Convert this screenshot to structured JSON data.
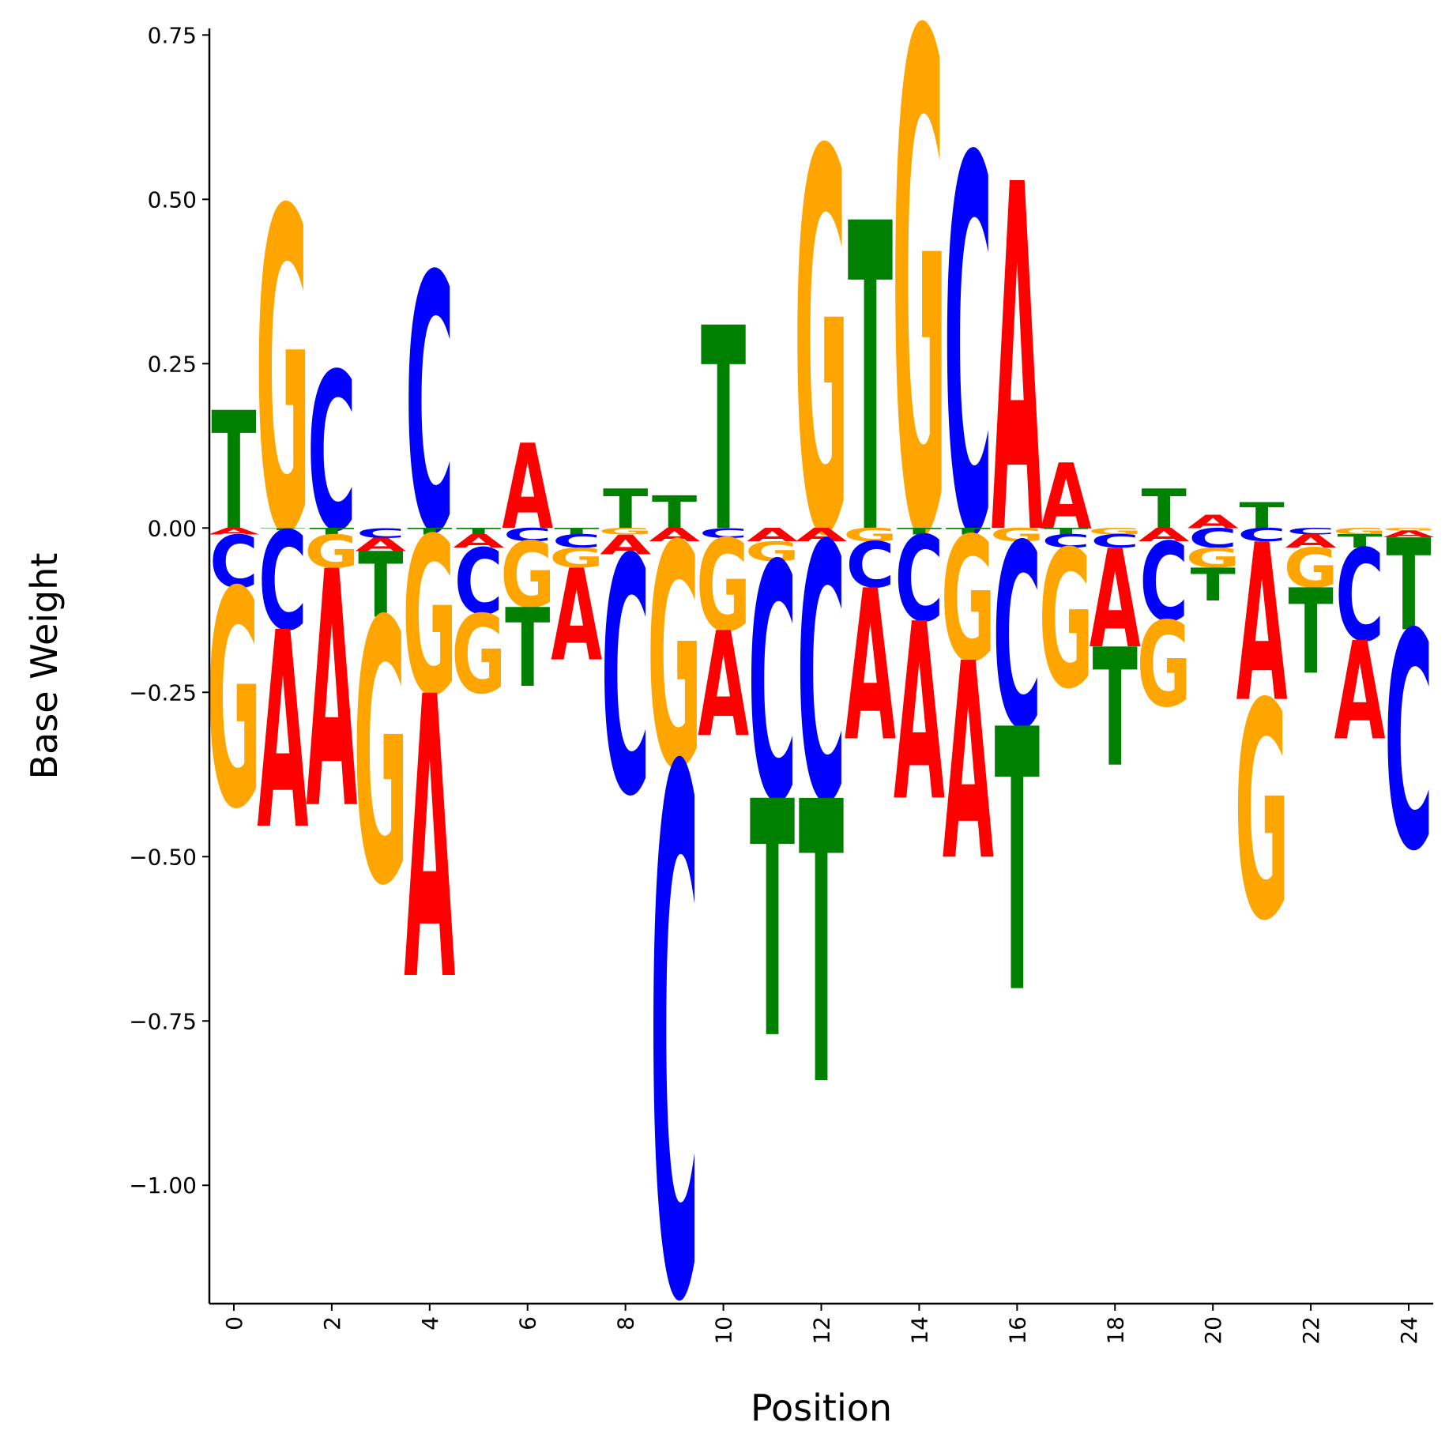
{
  "chart_data": {
    "type": "sequence-logo",
    "xlabel": "Position",
    "ylabel": "Base Weight",
    "xlim": [
      -0.5,
      24.5
    ],
    "ylim": [
      -1.18,
      0.76
    ],
    "x_ticks": [
      "0",
      "2",
      "4",
      "6",
      "8",
      "10",
      "12",
      "14",
      "16",
      "18",
      "20",
      "22",
      "24"
    ],
    "y_ticks": [
      "0.75",
      "0.50",
      "0.25",
      "0.00",
      "−0.25",
      "−0.50",
      "−0.75",
      "−1.00"
    ],
    "y_tick_values": [
      0.75,
      0.5,
      0.25,
      0.0,
      -0.25,
      -0.5,
      -0.75,
      -1.0
    ],
    "colors": {
      "A": "#ff0000",
      "C": "#0000ff",
      "G": "#ffa500",
      "T": "#008000"
    },
    "positions": [
      {
        "pos": 0,
        "A": -0.01,
        "C": -0.08,
        "G": -0.33,
        "T": 0.18
      },
      {
        "pos": 1,
        "A": -0.3,
        "C": -0.15,
        "G": 0.49,
        "T": -0.003
      },
      {
        "pos": 2,
        "A": -0.36,
        "C": 0.24,
        "G": -0.05,
        "T": -0.01
      },
      {
        "pos": 3,
        "A": -0.02,
        "C": -0.015,
        "G": -0.4,
        "T": -0.1
      },
      {
        "pos": 4,
        "A": -0.43,
        "C": 0.39,
        "G": -0.24,
        "T": -0.01
      },
      {
        "pos": 5,
        "A": -0.02,
        "C": -0.1,
        "G": -0.12,
        "T": -0.01
      },
      {
        "pos": 6,
        "A": 0.13,
        "C": -0.02,
        "G": -0.1,
        "T": -0.12
      },
      {
        "pos": 7,
        "A": -0.14,
        "C": -0.02,
        "G": -0.03,
        "T": -0.01
      },
      {
        "pos": 8,
        "A": -0.03,
        "C": -0.36,
        "G": -0.01,
        "T": 0.06
      },
      {
        "pos": 9,
        "A": -0.02,
        "C": -0.8,
        "G": -0.34,
        "T": 0.05
      },
      {
        "pos": 10,
        "A": -0.16,
        "C": -0.015,
        "G": -0.14,
        "T": 0.31
      },
      {
        "pos": 11,
        "A": -0.02,
        "C": -0.36,
        "G": -0.03,
        "T": -0.36
      },
      {
        "pos": 12,
        "A": -0.02,
        "C": -0.39,
        "G": 0.58,
        "T": -0.43
      },
      {
        "pos": 13,
        "A": -0.23,
        "C": -0.07,
        "G": -0.02,
        "T": 0.47
      },
      {
        "pos": 14,
        "A": -0.27,
        "C": -0.13,
        "G": 0.76,
        "T": -0.01
      },
      {
        "pos": 15,
        "A": -0.3,
        "C": 0.57,
        "G": -0.19,
        "T": -0.01
      },
      {
        "pos": 16,
        "A": 0.53,
        "C": -0.28,
        "G": -0.02,
        "T": -0.4
      },
      {
        "pos": 17,
        "A": 0.1,
        "C": -0.02,
        "G": -0.21,
        "T": -0.01
      },
      {
        "pos": 18,
        "A": -0.15,
        "C": -0.02,
        "G": -0.01,
        "T": -0.18
      },
      {
        "pos": 19,
        "A": -0.02,
        "C": -0.12,
        "G": -0.13,
        "T": 0.06
      },
      {
        "pos": 20,
        "A": 0.02,
        "C": -0.03,
        "G": -0.03,
        "T": -0.05
      },
      {
        "pos": 21,
        "A": -0.24,
        "C": -0.02,
        "G": -0.33,
        "T": 0.04
      },
      {
        "pos": 22,
        "A": -0.02,
        "C": -0.01,
        "G": -0.06,
        "T": -0.13
      },
      {
        "pos": 23,
        "A": -0.15,
        "C": -0.14,
        "G": -0.01,
        "T": -0.02
      },
      {
        "pos": 24,
        "A": -0.01,
        "C": -0.33,
        "G": -0.004,
        "T": -0.14
      }
    ]
  }
}
